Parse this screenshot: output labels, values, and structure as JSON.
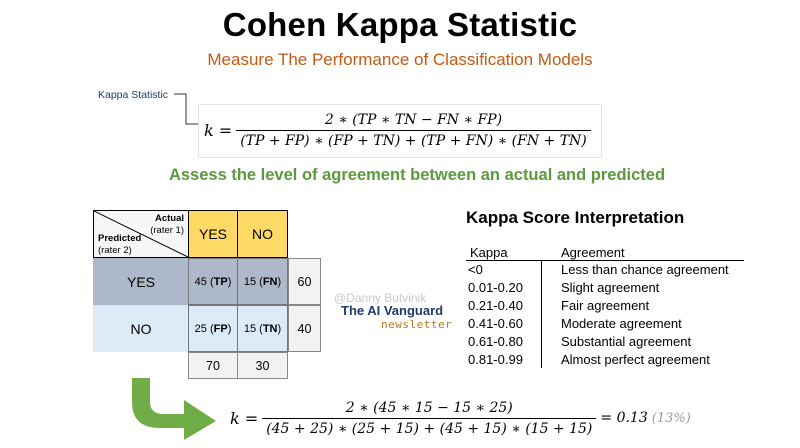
{
  "title": "Cohen Kappa Statistic",
  "subtitle": "Measure The Performance of Classification Models",
  "formula": {
    "label": "Kappa Statistic",
    "lhs": "k =",
    "numerator": "2 ∗ (TP ∗ TN − FN ∗ FP)",
    "denominator": "(TP + FP) ∗ (FP + TN) + (TP + FN) ∗ (FN + TN)"
  },
  "assess_text": "Assess the level of agreement between an actual and predicted",
  "matrix": {
    "actual_label": "Actual",
    "actual_rater": "(rater 1)",
    "predicted_label": "Predicted",
    "predicted_rater": "(rater 2)",
    "col_yes": "YES",
    "col_no": "NO",
    "row_yes": "YES",
    "row_no": "NO",
    "tp_value": "45",
    "tp_tag": "TP",
    "fn_value": "15",
    "fn_tag": "FN",
    "fp_value": "25",
    "fp_tag": "FP",
    "tn_value": "15",
    "tn_tag": "TN",
    "row_total_yes": "60",
    "row_total_no": "40",
    "col_total_yes": "70",
    "col_total_no": "30"
  },
  "watermark": "@Danny Butvinik",
  "brand": "The AI Vanguard",
  "newsletter": "newsletter",
  "interpretation": {
    "title": "Kappa Score Interpretation",
    "header_kappa": "Kappa",
    "header_agreement": "Agreement",
    "rows": [
      {
        "range": "<0",
        "agreement": "Less than chance agreement"
      },
      {
        "range": "0.01-0.20",
        "agreement": "Slight agreement"
      },
      {
        "range": "0.21-0.40",
        "agreement": "Fair agreement"
      },
      {
        "range": "0.41-0.60",
        "agreement": "Moderate agreement"
      },
      {
        "range": "0.61-0.80",
        "agreement": "Substantial agreement"
      },
      {
        "range": "0.81-0.99",
        "agreement": "Almost perfect agreement"
      }
    ]
  },
  "result": {
    "lhs": "k =",
    "numerator": "2 ∗ (45 ∗ 15 − 15 ∗ 25)",
    "denominator": "(45 + 25) ∗ (25 + 15) + (45 + 15) ∗ (15 + 15)",
    "value": "= 0.13",
    "percent": "(13%)"
  },
  "colors": {
    "title": "#000000",
    "subtitle": "#c55a11",
    "assess": "#5b9a3c",
    "header_yellow": "#ffd966",
    "row_yes_blue": "#adb9ca",
    "row_no_blue": "#ddebf7",
    "arrow_green": "#70ad47",
    "brand_navy": "#1f3a6e"
  },
  "icons": [
    "green-curved-arrow-icon"
  ]
}
